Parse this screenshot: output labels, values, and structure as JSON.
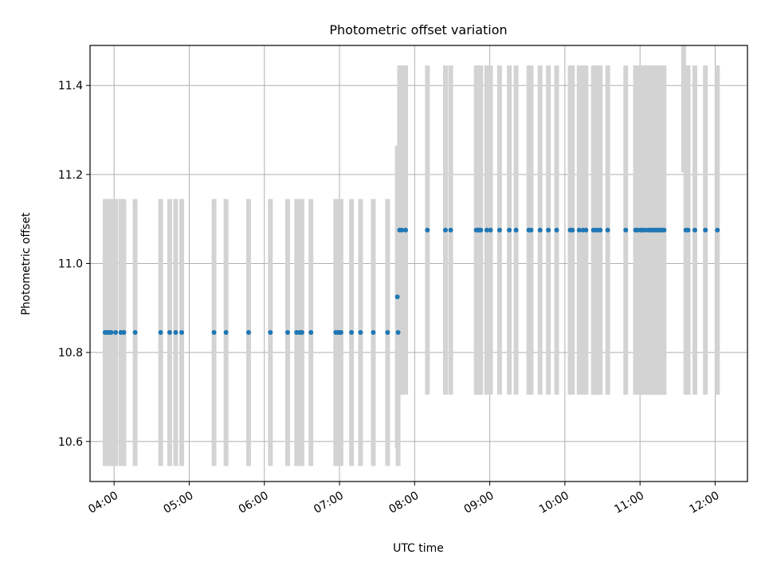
{
  "chart_data": {
    "type": "scatter",
    "title": "Photometric offset variation",
    "xlabel": "UTC time",
    "ylabel": "Photometric offset",
    "x_unit": "UTC hour",
    "xlim": [
      3.68,
      12.43
    ],
    "ylim": [
      10.51,
      11.49
    ],
    "xticks": [
      {
        "value": 4,
        "label": "04:00"
      },
      {
        "value": 5,
        "label": "05:00"
      },
      {
        "value": 6,
        "label": "06:00"
      },
      {
        "value": 7,
        "label": "07:00"
      },
      {
        "value": 8,
        "label": "08:00"
      },
      {
        "value": 9,
        "label": "09:00"
      },
      {
        "value": 10,
        "label": "10:00"
      },
      {
        "value": 11,
        "label": "11:00"
      },
      {
        "value": 12,
        "label": "12:00"
      }
    ],
    "yticks": [
      {
        "value": 10.6,
        "label": "10.6"
      },
      {
        "value": 10.8,
        "label": "10.8"
      },
      {
        "value": 11.0,
        "label": "11.0"
      },
      {
        "value": 11.2,
        "label": "11.2"
      },
      {
        "value": 11.4,
        "label": "11.4"
      }
    ],
    "grid": true,
    "colors": {
      "points": "#1f77b4",
      "error_bars": "#d3d3d3",
      "grid": "#b0b0b0"
    },
    "series": [
      {
        "x": [
          3.88,
          3.91,
          3.93,
          3.96,
          4.02,
          4.09,
          4.13,
          4.28,
          4.62,
          4.74,
          4.82,
          4.9,
          5.33,
          5.49,
          5.79,
          6.08,
          6.31,
          6.43,
          6.47,
          6.5,
          6.62,
          6.95,
          6.98,
          7.0,
          7.02,
          7.16,
          7.28,
          7.45,
          7.64,
          7.78
        ],
        "y": [
          10.845,
          10.845,
          10.845,
          10.845,
          10.845,
          10.845,
          10.845,
          10.845,
          10.845,
          10.845,
          10.845,
          10.845,
          10.845,
          10.845,
          10.845,
          10.845,
          10.845,
          10.845,
          10.845,
          10.845,
          10.845,
          10.845,
          10.845,
          10.845,
          10.845,
          10.845,
          10.845,
          10.845,
          10.845,
          10.845
        ],
        "yerr": [
          0.3,
          0.3,
          0.3,
          0.3,
          0.3,
          0.3,
          0.3,
          0.3,
          0.3,
          0.3,
          0.3,
          0.3,
          0.3,
          0.3,
          0.3,
          0.3,
          0.3,
          0.3,
          0.3,
          0.3,
          0.3,
          0.3,
          0.3,
          0.3,
          0.3,
          0.3,
          0.3,
          0.3,
          0.3,
          0.3
        ]
      },
      {
        "x": [
          7.77
        ],
        "y": [
          10.925
        ],
        "yerr": [
          0.34
        ]
      },
      {
        "x": [
          7.8,
          7.83,
          7.88,
          8.17,
          8.41,
          8.48,
          8.82,
          8.84,
          8.86,
          8.88,
          8.96,
          9.01,
          9.13,
          9.26,
          9.35,
          9.52,
          9.55,
          9.67,
          9.78,
          9.89,
          10.07,
          10.1,
          10.19,
          10.24,
          10.28,
          10.38,
          10.41,
          10.44,
          10.47,
          10.57,
          10.81,
          10.94,
          10.97,
          11.01,
          11.04,
          11.07,
          11.11,
          11.14,
          11.16,
          11.19,
          11.22,
          11.24,
          11.27,
          11.29,
          11.32,
          11.58,
          11.61,
          11.64,
          11.73,
          11.87,
          12.03
        ],
        "y": [
          11.075,
          11.075,
          11.075,
          11.075,
          11.075,
          11.075,
          11.075,
          11.075,
          11.075,
          11.075,
          11.075,
          11.075,
          11.075,
          11.075,
          11.075,
          11.075,
          11.075,
          11.075,
          11.075,
          11.075,
          11.075,
          11.075,
          11.075,
          11.075,
          11.075,
          11.075,
          11.075,
          11.075,
          11.075,
          11.075,
          11.075,
          11.075,
          11.075,
          11.075,
          11.075,
          11.075,
          11.075,
          11.075,
          11.075,
          11.075,
          11.075,
          11.075,
          11.075,
          11.075,
          11.075,
          11.575,
          11.075,
          11.075,
          11.075,
          11.075,
          11.075
        ],
        "yerr": [
          0.37,
          0.37,
          0.37,
          0.37,
          0.37,
          0.37,
          0.37,
          0.37,
          0.37,
          0.37,
          0.37,
          0.37,
          0.37,
          0.37,
          0.37,
          0.37,
          0.37,
          0.37,
          0.37,
          0.37,
          0.37,
          0.37,
          0.37,
          0.37,
          0.37,
          0.37,
          0.37,
          0.37,
          0.37,
          0.37,
          0.37,
          0.37,
          0.37,
          0.37,
          0.37,
          0.37,
          0.37,
          0.37,
          0.37,
          0.37,
          0.37,
          0.37,
          0.37,
          0.37,
          0.37,
          0.37,
          0.37,
          0.37,
          0.37,
          0.37,
          0.37
        ]
      }
    ]
  }
}
